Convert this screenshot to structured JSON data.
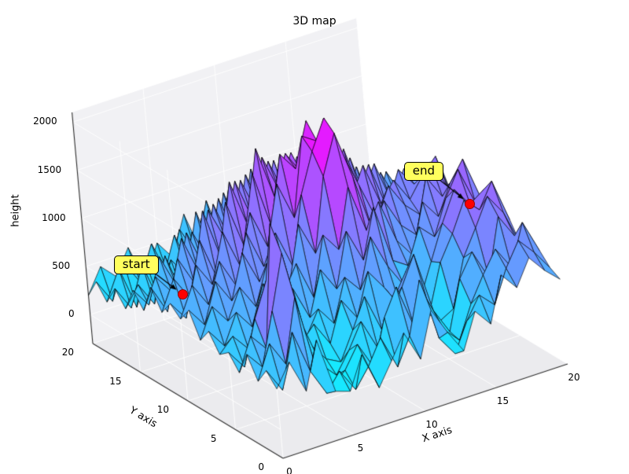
{
  "chart_data": {
    "type": "surface",
    "title": "3D map",
    "xlabel": "X axis",
    "ylabel": "Y axis",
    "zlabel": "height",
    "x_ticks": [
      0,
      5,
      10,
      15,
      20
    ],
    "y_ticks": [
      0,
      5,
      10,
      15,
      20
    ],
    "z_ticks": [
      0,
      500,
      1000,
      1500,
      2000
    ],
    "xlim": [
      0,
      20
    ],
    "ylim": [
      0,
      20
    ],
    "zlim": [
      -300,
      2100
    ],
    "grid": true,
    "colormap": {
      "name": "cool",
      "low": "#00ffff",
      "high": "#ff00ff"
    },
    "heights": [
      [
        420,
        650,
        300,
        780,
        200,
        150,
        480,
        90,
        320,
        560,
        240,
        700,
        420,
        180,
        540,
        360,
        820,
        640,
        900,
        720,
        580
      ],
      [
        550,
        300,
        850,
        400,
        120,
        300,
        60,
        250,
        500,
        150,
        420,
        950,
        300,
        90,
        380,
        600,
        450,
        780,
        1020,
        850,
        640
      ],
      [
        380,
        720,
        460,
        1100,
        350,
        80,
        200,
        420,
        130,
        600,
        870,
        400,
        650,
        280,
        120,
        450,
        700,
        920,
        680,
        1100,
        760
      ],
      [
        600,
        420,
        950,
        1500,
        700,
        250,
        90,
        300,
        550,
        220,
        480,
        760,
        1050,
        420,
        150,
        650,
        880,
        560,
        1150,
        900,
        820
      ],
      [
        350,
        680,
        500,
        1750,
        900,
        400,
        200,
        120,
        400,
        700,
        300,
        580,
        820,
        350,
        200,
        280,
        760,
        1020,
        1300,
        1080,
        700
      ],
      [
        500,
        300,
        750,
        1100,
        600,
        350,
        500,
        250,
        650,
        420,
        850,
        640,
        400,
        780,
        250,
        700,
        950,
        1250,
        1100,
        1350,
        900
      ],
      [
        420,
        560,
        380,
        800,
        450,
        700,
        300,
        550,
        350,
        780,
        600,
        1100,
        750,
        500,
        300,
        650,
        1000,
        1300,
        1100,
        1200,
        1050
      ],
      [
        600,
        400,
        700,
        500,
        900,
        550,
        750,
        400,
        850,
        600,
        1150,
        800,
        1300,
        700,
        600,
        950,
        800,
        1150,
        1400,
        1000,
        850
      ],
      [
        450,
        750,
        550,
        850,
        600,
        1000,
        650,
        900,
        500,
        1100,
        900,
        1500,
        1000,
        1250,
        800,
        600,
        1100,
        900,
        1200,
        1400,
        950
      ],
      [
        700,
        500,
        900,
        650,
        1100,
        750,
        950,
        600,
        1200,
        850,
        1600,
        2000,
        1500,
        900,
        1150,
        850,
        700,
        1250,
        1000,
        1150,
        800
      ],
      [
        550,
        850,
        600,
        1000,
        700,
        1200,
        800,
        1100,
        700,
        1400,
        1800,
        2100,
        1700,
        1300,
        900,
        1200,
        950,
        800,
        1300,
        1000,
        900
      ],
      [
        650,
        450,
        950,
        700,
        1200,
        800,
        1300,
        900,
        1500,
        1100,
        1900,
        1800,
        1500,
        1100,
        1400,
        950,
        1150,
        900,
        1100,
        1250,
        750
      ],
      [
        500,
        800,
        550,
        1100,
        650,
        1400,
        900,
        1600,
        1000,
        1700,
        1500,
        1950,
        1300,
        1550,
        1000,
        1300,
        800,
        1150,
        950,
        800,
        1000
      ],
      [
        700,
        400,
        900,
        600,
        1300,
        750,
        1500,
        1000,
        1750,
        1200,
        1600,
        1350,
        1700,
        1100,
        1450,
        900,
        1200,
        750,
        1050,
        900,
        650
      ],
      [
        400,
        700,
        500,
        1000,
        600,
        1200,
        850,
        1400,
        950,
        1550,
        1150,
        1500,
        1050,
        1400,
        850,
        1250,
        700,
        1000,
        650,
        850,
        550
      ],
      [
        550,
        350,
        800,
        450,
        950,
        550,
        1150,
        700,
        1300,
        900,
        1400,
        1000,
        1350,
        800,
        1200,
        650,
        1050,
        500,
        900,
        600,
        700
      ],
      [
        300,
        500,
        250,
        700,
        250,
        850,
        500,
        1100,
        650,
        1250,
        800,
        1300,
        700,
        1150,
        550,
        950,
        450,
        800,
        400,
        700,
        450
      ],
      [
        450,
        200,
        600,
        150,
        550,
        350,
        950,
        450,
        1050,
        550,
        1200,
        600,
        1100,
        450,
        900,
        350,
        750,
        300,
        650,
        350,
        550
      ],
      [
        250,
        550,
        100,
        450,
        300,
        700,
        250,
        800,
        400,
        1000,
        450,
        950,
        500,
        850,
        300,
        700,
        200,
        600,
        250,
        500,
        300
      ],
      [
        400,
        150,
        500,
        250,
        600,
        200,
        650,
        350,
        850,
        300,
        800,
        400,
        750,
        250,
        650,
        150,
        550,
        300,
        450,
        150,
        400
      ],
      [
        200,
        450,
        300,
        550,
        150,
        500,
        300,
        700,
        250,
        650,
        350,
        600,
        200,
        550,
        300,
        450,
        100,
        400,
        200,
        350,
        250
      ]
    ],
    "annotations": [
      {
        "label": "start",
        "x": 4,
        "y": 16,
        "z": 250,
        "marker_color": "#ff0000"
      },
      {
        "label": "end",
        "x": 18,
        "y": 6,
        "z": 1100,
        "marker_color": "#ff0000"
      }
    ]
  },
  "colors": {
    "pane": "#f1f1f4",
    "pane_floor": "#ebebee",
    "grid": "#ffffff",
    "spine": "#2a2a2a",
    "edge": "#000000",
    "annotation_box": "#ffff5e",
    "marker_edge": "#990000"
  }
}
